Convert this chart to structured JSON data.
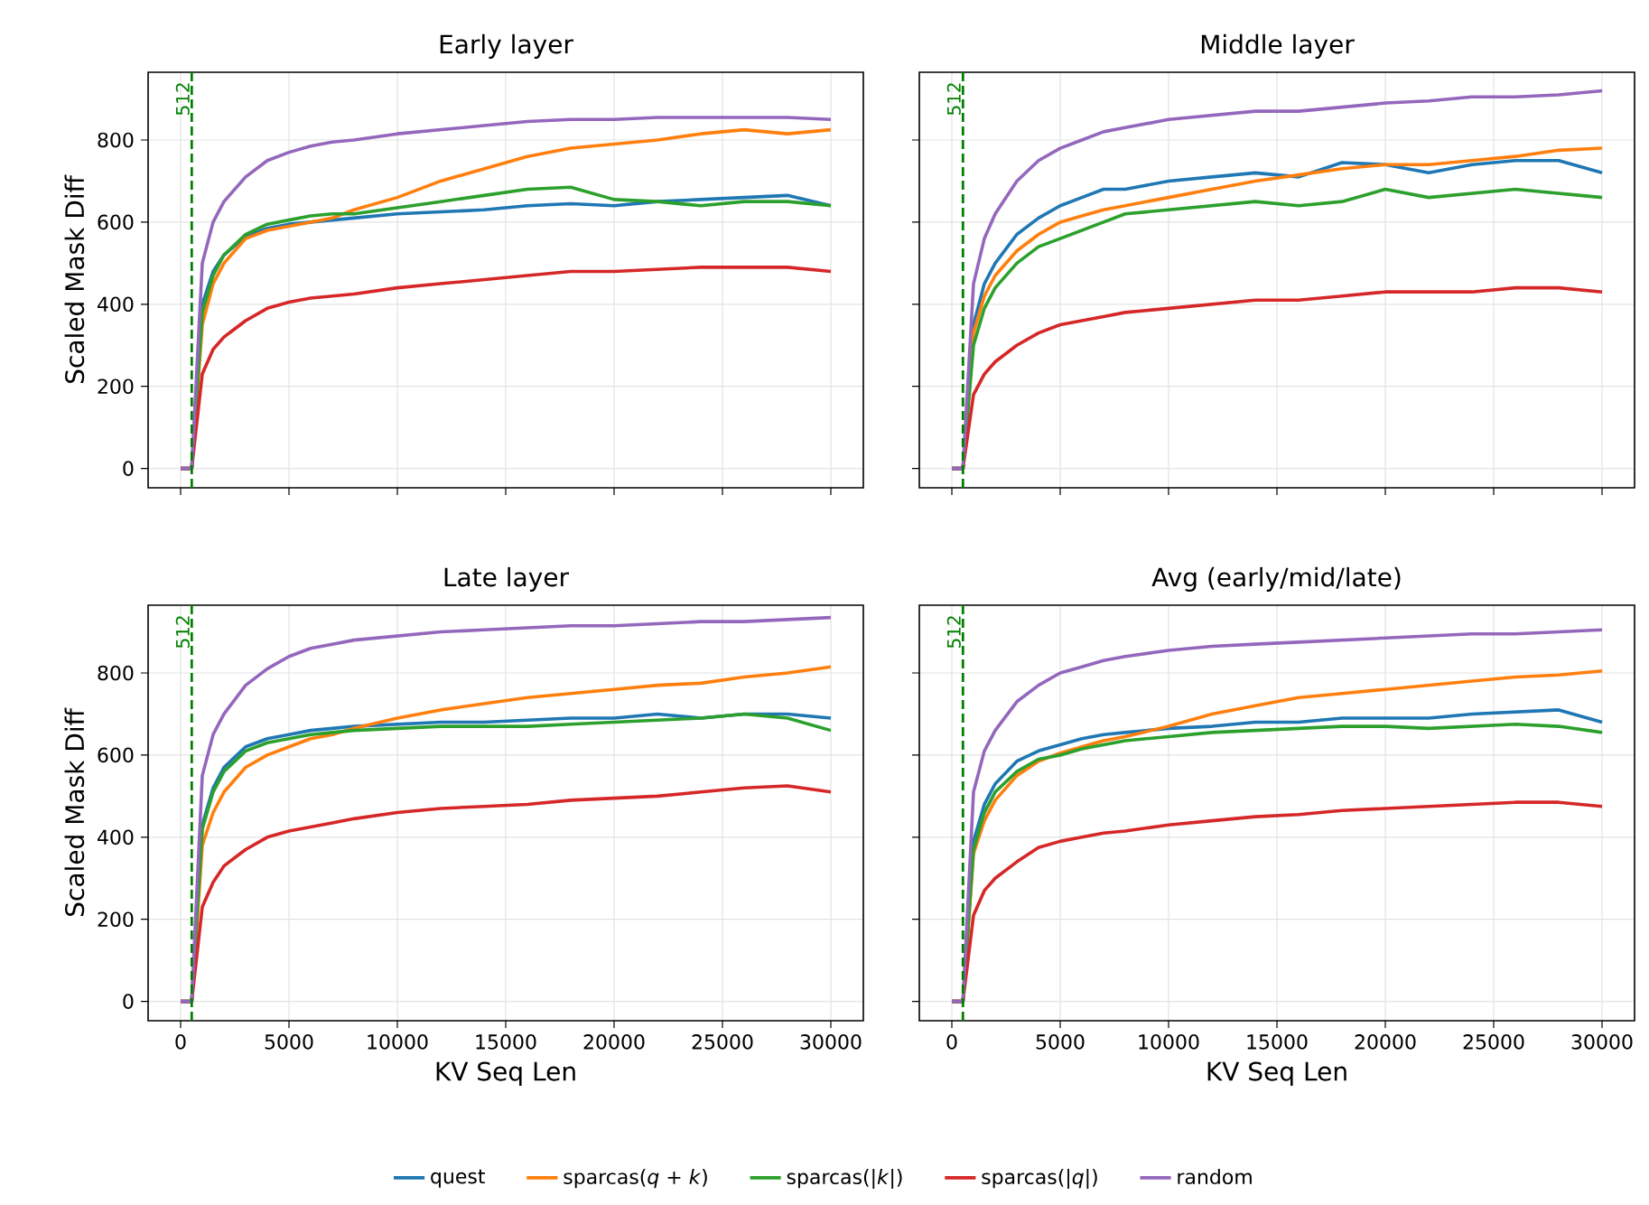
{
  "chart_data": [
    {
      "type": "line",
      "title": "Early layer",
      "ylabel": "Scaled Mask Diff",
      "x": [
        0,
        512,
        1000,
        1500,
        2000,
        3000,
        4000,
        5000,
        6000,
        7000,
        8000,
        10000,
        12000,
        14000,
        16000,
        18000,
        20000,
        22000,
        24000,
        26000,
        28000,
        30000
      ],
      "xlim": [
        -1500,
        31500
      ],
      "ylim": [
        -47,
        965
      ],
      "xticks": [
        0,
        5000,
        10000,
        15000,
        20000,
        25000,
        30000
      ],
      "yticks": [
        0,
        200,
        400,
        600,
        800
      ],
      "tick_labels": "y",
      "grid": true,
      "line_style": "solid",
      "ref_lines": [
        {
          "axis": "x",
          "value": 512,
          "label": "512",
          "color": "#008000",
          "line_style": "dashed"
        }
      ],
      "series": [
        {
          "color": "#1f77b4",
          "values": [
            0,
            0,
            400,
            480,
            520,
            565,
            585,
            595,
            600,
            605,
            610,
            620,
            625,
            630,
            640,
            645,
            640,
            650,
            655,
            660,
            665,
            640
          ]
        },
        {
          "color": "#ff7f0e",
          "values": [
            0,
            0,
            350,
            450,
            500,
            560,
            580,
            590,
            600,
            610,
            630,
            660,
            700,
            730,
            760,
            780,
            790,
            800,
            815,
            825,
            815,
            825
          ]
        },
        {
          "color": "#2ca02c",
          "values": [
            0,
            0,
            380,
            470,
            520,
            570,
            595,
            605,
            615,
            620,
            620,
            635,
            650,
            665,
            680,
            685,
            655,
            650,
            640,
            650,
            650,
            640
          ]
        },
        {
          "color": "#d62728",
          "values": [
            0,
            0,
            230,
            290,
            320,
            360,
            390,
            405,
            415,
            420,
            425,
            440,
            450,
            460,
            470,
            480,
            480,
            485,
            490,
            490,
            490,
            480
          ]
        },
        {
          "color": "#9467bd",
          "values": [
            0,
            0,
            500,
            600,
            650,
            710,
            750,
            770,
            785,
            795,
            800,
            815,
            825,
            835,
            845,
            850,
            850,
            855,
            855,
            855,
            855,
            850
          ]
        }
      ]
    },
    {
      "type": "line",
      "title": "Middle layer",
      "x": [
        0,
        512,
        1000,
        1500,
        2000,
        3000,
        4000,
        5000,
        6000,
        7000,
        8000,
        10000,
        12000,
        14000,
        16000,
        18000,
        20000,
        22000,
        24000,
        26000,
        28000,
        30000
      ],
      "xlim": [
        -1500,
        31500
      ],
      "ylim": [
        -47,
        965
      ],
      "xticks": [
        0,
        5000,
        10000,
        15000,
        20000,
        25000,
        30000
      ],
      "yticks": [
        0,
        200,
        400,
        600,
        800
      ],
      "tick_labels": false,
      "grid": true,
      "line_style": "solid",
      "ref_lines": [
        {
          "axis": "x",
          "value": 512,
          "label": "512",
          "color": "#008000",
          "line_style": "dashed"
        }
      ],
      "series": [
        {
          "color": "#1f77b4",
          "values": [
            0,
            0,
            350,
            450,
            500,
            570,
            610,
            640,
            660,
            680,
            680,
            700,
            710,
            720,
            710,
            745,
            740,
            720,
            740,
            750,
            750,
            720
          ]
        },
        {
          "color": "#ff7f0e",
          "values": [
            0,
            0,
            330,
            420,
            470,
            530,
            570,
            600,
            615,
            630,
            640,
            660,
            680,
            700,
            715,
            730,
            740,
            740,
            750,
            760,
            775,
            780
          ]
        },
        {
          "color": "#2ca02c",
          "values": [
            0,
            0,
            300,
            390,
            440,
            500,
            540,
            560,
            580,
            600,
            620,
            630,
            640,
            650,
            640,
            650,
            680,
            660,
            670,
            680,
            670,
            660
          ]
        },
        {
          "color": "#d62728",
          "values": [
            0,
            0,
            180,
            230,
            260,
            300,
            330,
            350,
            360,
            370,
            380,
            390,
            400,
            410,
            410,
            420,
            430,
            430,
            430,
            440,
            440,
            430
          ]
        },
        {
          "color": "#9467bd",
          "values": [
            0,
            0,
            450,
            560,
            620,
            700,
            750,
            780,
            800,
            820,
            830,
            850,
            860,
            870,
            870,
            880,
            890,
            895,
            905,
            905,
            910,
            920
          ]
        }
      ]
    },
    {
      "type": "line",
      "title": "Late layer",
      "xlabel": "KV Seq Len",
      "ylabel": "Scaled Mask Diff",
      "x": [
        0,
        512,
        1000,
        1500,
        2000,
        3000,
        4000,
        5000,
        6000,
        7000,
        8000,
        10000,
        12000,
        14000,
        16000,
        18000,
        20000,
        22000,
        24000,
        26000,
        28000,
        30000
      ],
      "xlim": [
        -1500,
        31500
      ],
      "ylim": [
        -47,
        965
      ],
      "xticks": [
        0,
        5000,
        10000,
        15000,
        20000,
        25000,
        30000
      ],
      "yticks": [
        0,
        200,
        400,
        600,
        800
      ],
      "grid": true,
      "line_style": "solid",
      "ref_lines": [
        {
          "axis": "x",
          "value": 512,
          "label": "512",
          "color": "#008000",
          "line_style": "dashed"
        }
      ],
      "series": [
        {
          "color": "#1f77b4",
          "values": [
            0,
            0,
            430,
            520,
            570,
            620,
            640,
            650,
            660,
            665,
            670,
            675,
            680,
            680,
            685,
            690,
            690,
            700,
            690,
            700,
            700,
            690
          ]
        },
        {
          "color": "#ff7f0e",
          "values": [
            0,
            0,
            380,
            460,
            510,
            570,
            600,
            620,
            640,
            650,
            665,
            690,
            710,
            725,
            740,
            750,
            760,
            770,
            775,
            790,
            800,
            815
          ]
        },
        {
          "color": "#2ca02c",
          "values": [
            0,
            0,
            420,
            510,
            560,
            610,
            630,
            640,
            650,
            655,
            660,
            665,
            670,
            670,
            670,
            675,
            680,
            685,
            690,
            700,
            690,
            660
          ]
        },
        {
          "color": "#d62728",
          "values": [
            0,
            0,
            230,
            290,
            330,
            370,
            400,
            415,
            425,
            435,
            445,
            460,
            470,
            475,
            480,
            490,
            495,
            500,
            510,
            520,
            525,
            510
          ]
        },
        {
          "color": "#9467bd",
          "values": [
            0,
            0,
            550,
            650,
            700,
            770,
            810,
            840,
            860,
            870,
            880,
            890,
            900,
            905,
            910,
            915,
            915,
            920,
            925,
            925,
            930,
            935
          ]
        }
      ]
    },
    {
      "type": "line",
      "title": "Avg (early/mid/late)",
      "xlabel": "KV Seq Len",
      "x": [
        0,
        512,
        1000,
        1500,
        2000,
        3000,
        4000,
        5000,
        6000,
        7000,
        8000,
        10000,
        12000,
        14000,
        16000,
        18000,
        20000,
        22000,
        24000,
        26000,
        28000,
        30000
      ],
      "xlim": [
        -1500,
        31500
      ],
      "ylim": [
        -47,
        965
      ],
      "xticks": [
        0,
        5000,
        10000,
        15000,
        20000,
        25000,
        30000
      ],
      "yticks": [
        0,
        200,
        400,
        600,
        800
      ],
      "tick_labels": "x",
      "grid": true,
      "line_style": "solid",
      "legend": "bottom",
      "ref_lines": [
        {
          "axis": "x",
          "value": 512,
          "label": "512",
          "color": "#008000",
          "line_style": "dashed"
        }
      ],
      "series": [
        {
          "name": "quest",
          "color": "#1f77b4",
          "values": [
            0,
            0,
            390,
            480,
            530,
            585,
            610,
            625,
            640,
            650,
            655,
            665,
            670,
            680,
            680,
            690,
            690,
            690,
            700,
            705,
            710,
            680
          ]
        },
        {
          "name": "sparcas(*q* + *k*)",
          "color": "#ff7f0e",
          "values": [
            0,
            0,
            360,
            440,
            490,
            550,
            585,
            605,
            620,
            635,
            645,
            670,
            700,
            720,
            740,
            750,
            760,
            770,
            780,
            790,
            795,
            805
          ]
        },
        {
          "name": "sparcas(|*k*|)",
          "color": "#2ca02c",
          "values": [
            0,
            0,
            370,
            460,
            510,
            560,
            590,
            600,
            615,
            625,
            635,
            645,
            655,
            660,
            665,
            670,
            670,
            665,
            670,
            675,
            670,
            655
          ]
        },
        {
          "name": "sparcas(|*q*|)",
          "color": "#d62728",
          "values": [
            0,
            0,
            210,
            270,
            300,
            340,
            375,
            390,
            400,
            410,
            415,
            430,
            440,
            450,
            455,
            465,
            470,
            475,
            480,
            485,
            485,
            475
          ]
        },
        {
          "name": "random",
          "color": "#9467bd",
          "values": [
            0,
            0,
            510,
            610,
            660,
            730,
            770,
            800,
            815,
            830,
            840,
            855,
            865,
            870,
            875,
            880,
            885,
            890,
            895,
            895,
            900,
            905
          ]
        }
      ]
    }
  ]
}
